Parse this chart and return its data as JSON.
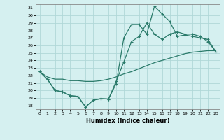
{
  "xlabel": "Humidex (Indice chaleur)",
  "xlim": [
    -0.5,
    23.5
  ],
  "ylim": [
    17.5,
    31.5
  ],
  "yticks": [
    18,
    19,
    20,
    21,
    22,
    23,
    24,
    25,
    26,
    27,
    28,
    29,
    30,
    31
  ],
  "xticks": [
    0,
    1,
    2,
    3,
    4,
    5,
    6,
    7,
    8,
    9,
    10,
    11,
    12,
    13,
    14,
    15,
    16,
    17,
    18,
    19,
    20,
    21,
    22,
    23
  ],
  "bg_color": "#d5f0f0",
  "grid_color": "#b0d8d8",
  "line_color": "#2a7a6a",
  "line1_y": [
    22.5,
    21.5,
    20.0,
    19.8,
    19.3,
    19.2,
    17.8,
    18.7,
    18.9,
    18.85,
    20.9,
    27.0,
    28.8,
    28.8,
    27.5,
    31.2,
    30.2,
    29.2,
    27.2,
    27.4,
    27.2,
    27.0,
    26.8,
    25.2
  ],
  "line2_y": [
    22.5,
    21.5,
    20.0,
    19.8,
    19.3,
    19.2,
    17.8,
    18.7,
    18.9,
    18.85,
    21.2,
    23.8,
    26.5,
    27.2,
    29.0,
    27.5,
    26.8,
    27.5,
    27.8,
    27.5,
    27.5,
    27.2,
    26.5,
    25.2
  ],
  "line3_y": [
    22.5,
    21.8,
    21.5,
    21.5,
    21.3,
    21.3,
    21.2,
    21.2,
    21.3,
    21.5,
    21.8,
    22.2,
    22.5,
    22.9,
    23.3,
    23.7,
    24.0,
    24.3,
    24.6,
    24.9,
    25.1,
    25.2,
    25.3,
    25.3
  ]
}
